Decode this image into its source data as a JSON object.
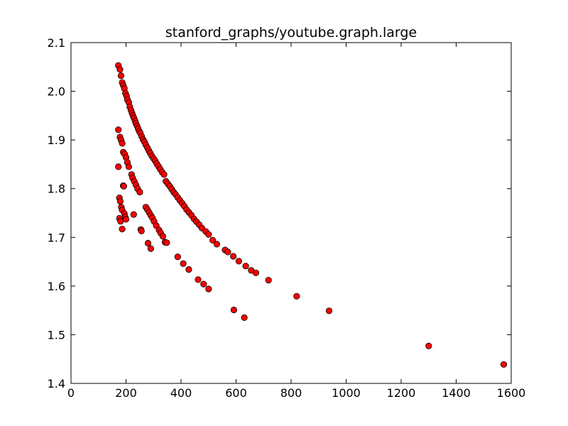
{
  "chart_data": {
    "type": "scatter",
    "title": "stanford_graphs/youtube.graph.large",
    "xlabel": "",
    "ylabel": "",
    "xlim": [
      0,
      1600
    ],
    "ylim": [
      1.4,
      2.1
    ],
    "xticks": [
      "0",
      "200",
      "400",
      "600",
      "800",
      "1000",
      "1200",
      "1400",
      "1600"
    ],
    "yticks": [
      "1.4",
      "1.5",
      "1.6",
      "1.7",
      "1.8",
      "1.9",
      "2.0",
      "2.1"
    ],
    "xtick_values": [
      0,
      200,
      400,
      600,
      800,
      1000,
      1200,
      1400,
      1600
    ],
    "ytick_values": [
      1.4,
      1.5,
      1.6,
      1.7,
      1.8,
      1.9,
      2.0,
      2.1
    ],
    "grid": false,
    "marker_color": "#ff0000",
    "marker_edge_color": "#000000",
    "series": [
      {
        "points": [
          [
            172,
            2.053
          ],
          [
            178,
            2.045
          ],
          [
            182,
            2.032
          ],
          [
            186,
            2.018
          ],
          [
            190,
            2.012
          ],
          [
            194,
            2.006
          ],
          [
            198,
            1.996
          ],
          [
            202,
            1.99
          ],
          [
            205,
            1.983
          ],
          [
            210,
            1.977
          ],
          [
            214,
            1.968
          ],
          [
            218,
            1.961
          ],
          [
            222,
            1.955
          ],
          [
            225,
            1.95
          ],
          [
            229,
            1.945
          ],
          [
            233,
            1.939
          ],
          [
            236,
            1.934
          ],
          [
            240,
            1.929
          ],
          [
            244,
            1.923
          ],
          [
            248,
            1.918
          ],
          [
            252,
            1.914
          ],
          [
            257,
            1.907
          ],
          [
            262,
            1.901
          ],
          [
            267,
            1.896
          ],
          [
            272,
            1.89
          ],
          [
            278,
            1.884
          ],
          [
            283,
            1.878
          ],
          [
            288,
            1.873
          ],
          [
            294,
            1.867
          ],
          [
            300,
            1.862
          ],
          [
            306,
            1.857
          ],
          [
            312,
            1.851
          ],
          [
            318,
            1.846
          ],
          [
            324,
            1.84
          ],
          [
            331,
            1.834
          ],
          [
            338,
            1.829
          ],
          [
            345,
            1.815
          ],
          [
            352,
            1.81
          ],
          [
            359,
            1.805
          ],
          [
            366,
            1.799
          ],
          [
            373,
            1.793
          ],
          [
            380,
            1.788
          ],
          [
            388,
            1.782
          ],
          [
            396,
            1.776
          ],
          [
            404,
            1.77
          ],
          [
            412,
            1.764
          ],
          [
            420,
            1.757
          ],
          [
            429,
            1.751
          ],
          [
            438,
            1.745
          ],
          [
            447,
            1.738
          ],
          [
            456,
            1.732
          ],
          [
            466,
            1.726
          ],
          [
            476,
            1.719
          ],
          [
            490,
            1.712
          ],
          [
            500,
            1.706
          ],
          [
            515,
            1.694
          ],
          [
            530,
            1.686
          ],
          [
            560,
            1.674
          ],
          [
            570,
            1.67
          ],
          [
            590,
            1.661
          ],
          [
            610,
            1.651
          ],
          [
            635,
            1.641
          ],
          [
            655,
            1.632
          ],
          [
            672,
            1.627
          ],
          [
            718,
            1.612
          ],
          [
            820,
            1.579
          ],
          [
            938,
            1.549
          ],
          [
            1300,
            1.477
          ],
          [
            1573,
            1.439
          ]
        ]
      },
      {
        "points": [
          [
            172,
            1.921
          ],
          [
            178,
            1.906
          ],
          [
            182,
            1.9
          ],
          [
            186,
            1.893
          ],
          [
            190,
            1.875
          ],
          [
            195,
            1.871
          ],
          [
            200,
            1.864
          ],
          [
            205,
            1.854
          ],
          [
            210,
            1.845
          ],
          [
            220,
            1.829
          ],
          [
            224,
            1.822
          ],
          [
            230,
            1.815
          ],
          [
            236,
            1.808
          ],
          [
            242,
            1.8
          ],
          [
            250,
            1.793
          ],
          [
            272,
            1.762
          ],
          [
            278,
            1.757
          ],
          [
            284,
            1.751
          ],
          [
            290,
            1.745
          ],
          [
            296,
            1.74
          ],
          [
            302,
            1.733
          ],
          [
            310,
            1.724
          ],
          [
            320,
            1.715
          ],
          [
            326,
            1.709
          ],
          [
            334,
            1.702
          ],
          [
            342,
            1.69
          ],
          [
            348,
            1.689
          ],
          [
            388,
            1.66
          ],
          [
            408,
            1.646
          ],
          [
            428,
            1.634
          ],
          [
            462,
            1.613
          ],
          [
            482,
            1.604
          ],
          [
            500,
            1.594
          ],
          [
            592,
            1.551
          ],
          [
            630,
            1.535
          ]
        ]
      },
      {
        "points": [
          [
            172,
            1.845
          ],
          [
            176,
            1.781
          ],
          [
            179,
            1.774
          ],
          [
            183,
            1.762
          ],
          [
            186,
            1.756
          ],
          [
            190,
            1.806
          ],
          [
            192,
            1.805
          ],
          [
            194,
            1.749
          ],
          [
            197,
            1.742
          ],
          [
            200,
            1.737
          ],
          [
            176,
            1.739
          ],
          [
            180,
            1.733
          ],
          [
            186,
            1.717
          ],
          [
            228,
            1.747
          ],
          [
            254,
            1.716
          ],
          [
            256,
            1.713
          ],
          [
            280,
            1.688
          ],
          [
            290,
            1.677
          ]
        ]
      }
    ]
  }
}
